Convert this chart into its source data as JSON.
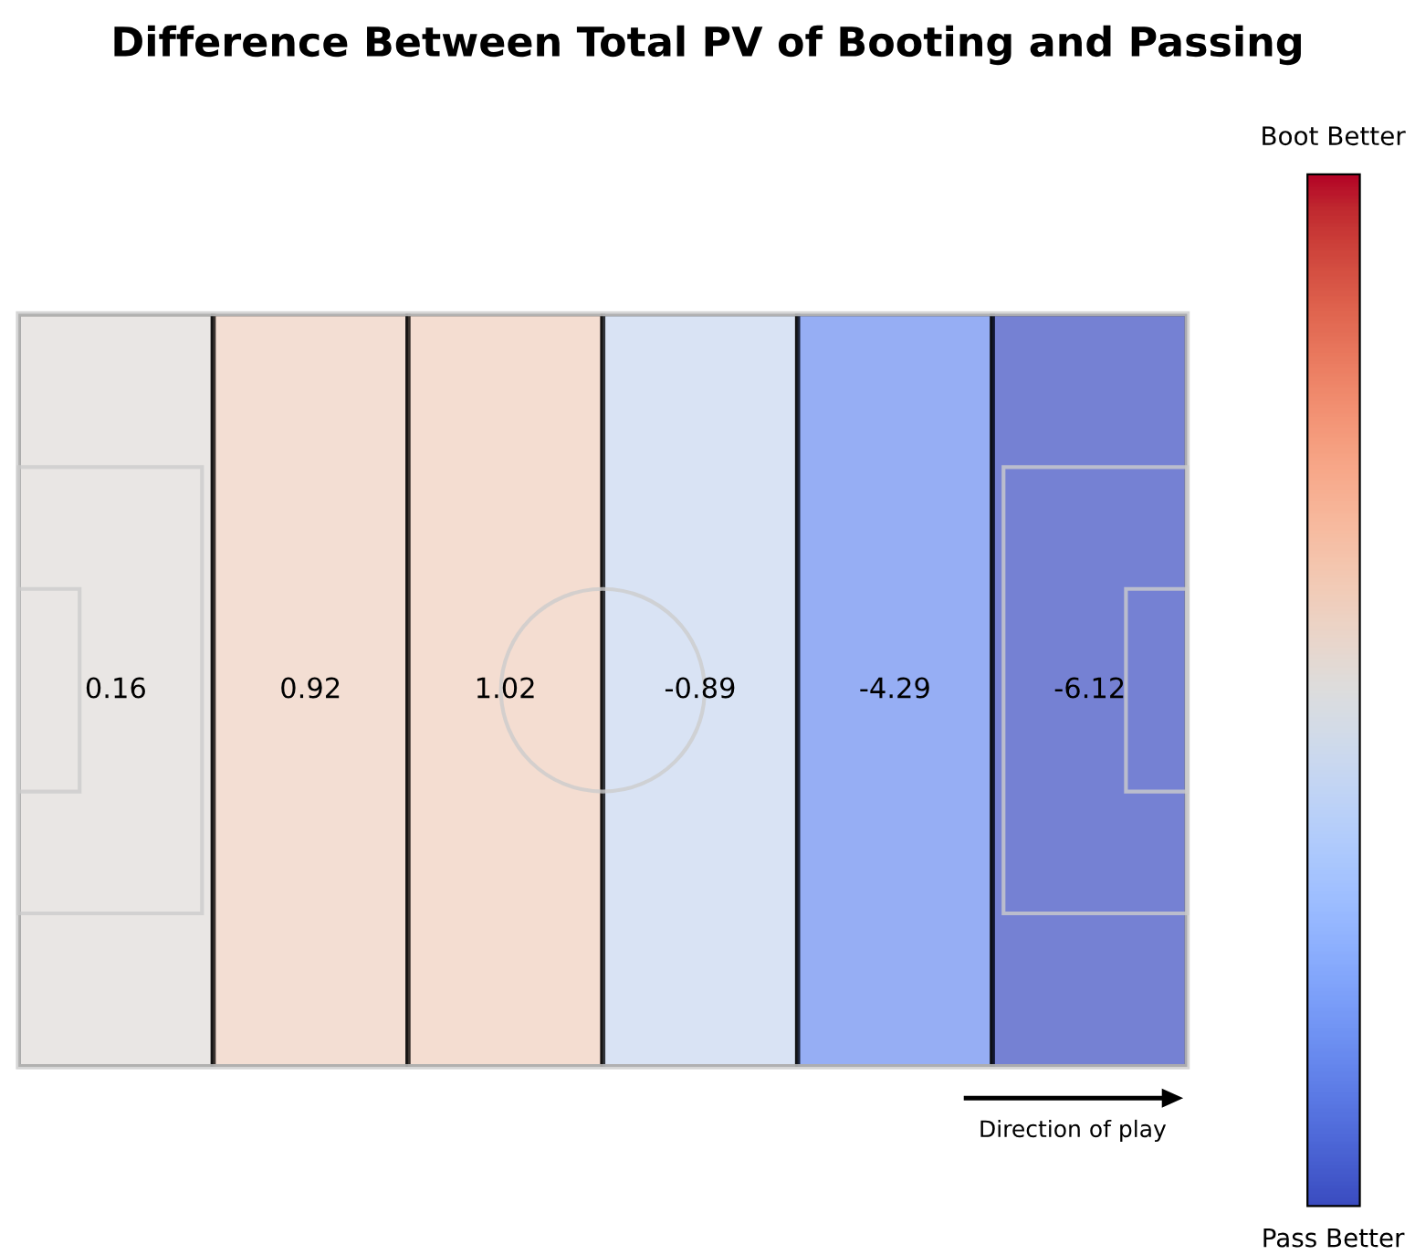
{
  "chart_data": {
    "type": "heatmap",
    "title": "Difference Between Total PV of Booting and Passing",
    "categories": [
      null,
      null,
      null,
      null,
      null,
      null
    ],
    "y_categories": [
      null
    ],
    "cells": [
      [
        0.16,
        0.92,
        1.02,
        -0.89,
        -4.29,
        -6.12
      ]
    ],
    "data_labels": true,
    "annotations": [
      "Direction of play",
      "Boot Better",
      "Pass Better"
    ]
  }
}
